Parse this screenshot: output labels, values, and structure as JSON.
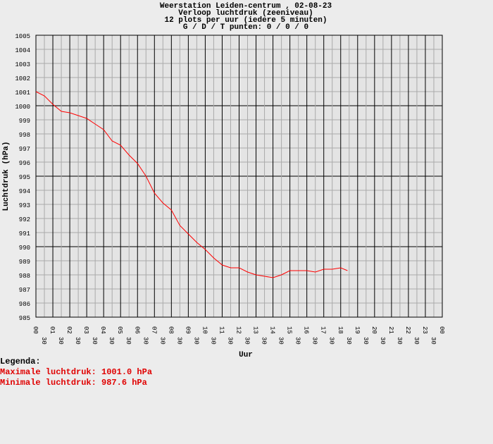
{
  "chart_data": {
    "type": "line",
    "title": [
      "Weerstation Leiden-centrum , 02-08-23",
      "Verloop luchtdruk (zeeniveau)",
      "12 plots per uur (iedere 5 minuten)",
      "G / D / T punten: 0 / 0 / 0"
    ],
    "ylabel": "Luchtdruk (hPa)",
    "xlabel": "Uur",
    "legend_title": "Legenda:",
    "notes": [
      "Maximale luchtdruk: 1001.0 hPa",
      "Minimale luchtdruk: 987.6 hPa"
    ],
    "x": [
      0,
      0.5,
      1,
      1.5,
      2,
      2.5,
      3,
      3.5,
      4,
      4.5,
      5,
      5.5,
      6,
      6.5,
      7,
      7.5,
      8,
      8.5,
      9,
      9.5,
      10,
      10.5,
      11,
      11.5,
      12,
      12.5,
      13,
      13.5,
      14,
      14.5,
      15,
      15.5,
      16,
      16.5,
      17,
      17.5,
      18,
      18.4
    ],
    "series": [
      {
        "name": "Luchtdruk",
        "color": "#ff0000",
        "values": [
          1001.0,
          1000.7,
          1000.1,
          999.6,
          999.5,
          999.3,
          999.1,
          998.7,
          998.3,
          997.5,
          997.2,
          996.5,
          995.9,
          995.0,
          993.8,
          993.1,
          992.6,
          991.5,
          990.9,
          990.3,
          989.8,
          989.2,
          988.7,
          988.5,
          988.5,
          988.2,
          988.0,
          987.9,
          987.8,
          988.0,
          988.3,
          988.3,
          988.3,
          988.2,
          988.4,
          988.4,
          988.5,
          988.3
        ]
      }
    ],
    "xlim": [
      0,
      24
    ],
    "ylim": [
      985,
      1005
    ],
    "yticks": [
      985,
      986,
      987,
      988,
      989,
      990,
      991,
      992,
      993,
      994,
      995,
      996,
      997,
      998,
      999,
      1000,
      1001,
      1002,
      1003,
      1004,
      1005
    ],
    "xticks": [
      {
        "value": 0,
        "label": "00"
      },
      {
        "value": 0.5,
        "label": "30"
      },
      {
        "value": 1,
        "label": "01"
      },
      {
        "value": 1.5,
        "label": "30"
      },
      {
        "value": 2,
        "label": "02"
      },
      {
        "value": 2.5,
        "label": "30"
      },
      {
        "value": 3,
        "label": "03"
      },
      {
        "value": 3.5,
        "label": "30"
      },
      {
        "value": 4,
        "label": "04"
      },
      {
        "value": 4.5,
        "label": "30"
      },
      {
        "value": 5,
        "label": "05"
      },
      {
        "value": 5.5,
        "label": "30"
      },
      {
        "value": 6,
        "label": "06"
      },
      {
        "value": 6.5,
        "label": "30"
      },
      {
        "value": 7,
        "label": "07"
      },
      {
        "value": 7.5,
        "label": "30"
      },
      {
        "value": 8,
        "label": "08"
      },
      {
        "value": 8.5,
        "label": "30"
      },
      {
        "value": 9,
        "label": "09"
      },
      {
        "value": 9.5,
        "label": "30"
      },
      {
        "value": 10,
        "label": "10"
      },
      {
        "value": 10.5,
        "label": "30"
      },
      {
        "value": 11,
        "label": "11"
      },
      {
        "value": 11.5,
        "label": "30"
      },
      {
        "value": 12,
        "label": "12"
      },
      {
        "value": 12.5,
        "label": "30"
      },
      {
        "value": 13,
        "label": "13"
      },
      {
        "value": 13.5,
        "label": "30"
      },
      {
        "value": 14,
        "label": "14"
      },
      {
        "value": 14.5,
        "label": "30"
      },
      {
        "value": 15,
        "label": "15"
      },
      {
        "value": 15.5,
        "label": "30"
      },
      {
        "value": 16,
        "label": "16"
      },
      {
        "value": 16.5,
        "label": "30"
      },
      {
        "value": 17,
        "label": "17"
      },
      {
        "value": 17.5,
        "label": "30"
      },
      {
        "value": 18,
        "label": "18"
      },
      {
        "value": 18.5,
        "label": "30"
      },
      {
        "value": 19,
        "label": "19"
      },
      {
        "value": 19.5,
        "label": "30"
      },
      {
        "value": 20,
        "label": "20"
      },
      {
        "value": 20.5,
        "label": "30"
      },
      {
        "value": 21,
        "label": "21"
      },
      {
        "value": 21.5,
        "label": "30"
      },
      {
        "value": 22,
        "label": "22"
      },
      {
        "value": 22.5,
        "label": "30"
      },
      {
        "value": 23,
        "label": "23"
      },
      {
        "value": 23.5,
        "label": "30"
      },
      {
        "value": 24,
        "label": "00"
      }
    ],
    "grid": true
  }
}
